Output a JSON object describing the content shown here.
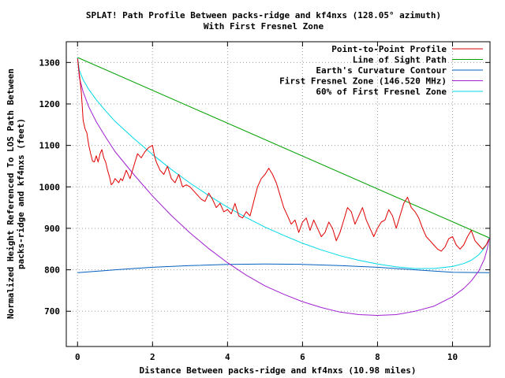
{
  "chart_data": {
    "type": "line",
    "title": "SPLAT! Path Profile Between packs-ridge and kf4nxs (128.05° azimuth)",
    "subtitle": "With First Fresnel Zone",
    "xlabel": "Distance Between packs-ridge and kf4nxs (10.98 miles)",
    "ylabel_lines": [
      "Normalized Height Referenced To LOS Path Between",
      "packs-ridge and kf4nxs (feet)"
    ],
    "xlim": [
      -0.3,
      11.0
    ],
    "ylim": [
      615,
      1350
    ],
    "xticks": [
      0,
      2,
      4,
      6,
      8,
      10
    ],
    "xtick_labels": [
      "0",
      "2",
      "4",
      "6",
      "8",
      "10"
    ],
    "yticks": [
      700,
      800,
      900,
      1000,
      1100,
      1200,
      1300
    ],
    "ytick_labels": [
      "700",
      "800",
      "900",
      "1000",
      "1100",
      "1200",
      "1300"
    ],
    "grid": true,
    "legend_position": "top-right",
    "series": [
      {
        "name": "Point-to-Point Profile",
        "color": "#e00000",
        "x": [
          0,
          0.1,
          0.15,
          0.2,
          0.25,
          0.3,
          0.35,
          0.4,
          0.45,
          0.5,
          0.55,
          0.6,
          0.65,
          0.7,
          0.75,
          0.8,
          0.85,
          0.9,
          0.95,
          1.0,
          1.05,
          1.1,
          1.15,
          1.2,
          1.3,
          1.4,
          1.5,
          1.6,
          1.7,
          1.8,
          1.9,
          2.0,
          2.05,
          2.1,
          2.2,
          2.3,
          2.4,
          2.5,
          2.6,
          2.7,
          2.8,
          2.9,
          3.0,
          3.1,
          3.2,
          3.3,
          3.4,
          3.5,
          3.6,
          3.7,
          3.8,
          3.9,
          4.0,
          4.1,
          4.2,
          4.3,
          4.4,
          4.5,
          4.6,
          4.7,
          4.8,
          4.9,
          5.0,
          5.1,
          5.2,
          5.3,
          5.4,
          5.5,
          5.6,
          5.7,
          5.8,
          5.9,
          6.0,
          6.1,
          6.2,
          6.3,
          6.4,
          6.5,
          6.6,
          6.7,
          6.8,
          6.9,
          7.0,
          7.1,
          7.2,
          7.3,
          7.4,
          7.5,
          7.6,
          7.7,
          7.8,
          7.9,
          8.0,
          8.1,
          8.2,
          8.3,
          8.4,
          8.5,
          8.6,
          8.7,
          8.8,
          8.9,
          9.0,
          9.1,
          9.2,
          9.3,
          9.4,
          9.5,
          9.6,
          9.7,
          9.8,
          9.9,
          10.0,
          10.1,
          10.2,
          10.3,
          10.4,
          10.5,
          10.6,
          10.7,
          10.8,
          10.9,
          10.98
        ],
        "values": [
          1310,
          1230,
          1160,
          1140,
          1130,
          1100,
          1080,
          1062,
          1060,
          1075,
          1060,
          1080,
          1090,
          1070,
          1060,
          1040,
          1025,
          1005,
          1010,
          1020,
          1015,
          1010,
          1020,
          1015,
          1040,
          1020,
          1050,
          1080,
          1070,
          1085,
          1095,
          1100,
          1075,
          1060,
          1040,
          1030,
          1050,
          1020,
          1010,
          1030,
          1000,
          1005,
          1000,
          990,
          980,
          970,
          965,
          985,
          970,
          950,
          960,
          940,
          945,
          935,
          960,
          930,
          925,
          940,
          930,
          965,
          1000,
          1020,
          1030,
          1045,
          1030,
          1010,
          980,
          950,
          930,
          910,
          920,
          890,
          915,
          925,
          895,
          920,
          900,
          880,
          890,
          915,
          900,
          870,
          890,
          920,
          950,
          940,
          910,
          930,
          950,
          920,
          900,
          880,
          900,
          915,
          920,
          945,
          930,
          900,
          930,
          960,
          975,
          950,
          940,
          925,
          900,
          880,
          870,
          860,
          850,
          845,
          855,
          875,
          880,
          860,
          850,
          860,
          880,
          895,
          870,
          860,
          850,
          860,
          875
        ]
      },
      {
        "name": "Line of Sight Path",
        "color": "#00a000",
        "x": [
          0,
          10.98
        ],
        "values": [
          1312,
          877
        ]
      },
      {
        "name": "Earth's Curvature Contour",
        "color": "#0060c0",
        "x": [
          0,
          1,
          2,
          3,
          4,
          5,
          6,
          7,
          8,
          9,
          10,
          10.98
        ],
        "values": [
          793,
          800,
          806,
          810,
          813,
          814,
          813,
          810,
          806,
          800,
          794,
          793
        ]
      },
      {
        "name": "First Fresnel Zone (146.520 MHz)",
        "color": "#a020d0",
        "x": [
          0,
          0.05,
          0.15,
          0.3,
          0.5,
          0.75,
          1.0,
          1.5,
          2.0,
          2.5,
          3.0,
          3.5,
          4.0,
          4.5,
          5.0,
          5.5,
          6.0,
          6.5,
          7.0,
          7.5,
          8.0,
          8.5,
          9.0,
          9.5,
          10.0,
          10.3,
          10.5,
          10.7,
          10.85,
          10.93,
          10.98
        ],
        "values": [
          1312,
          1263,
          1229,
          1193,
          1157,
          1120,
          1085,
          1030,
          978,
          931,
          889,
          851,
          817,
          787,
          761,
          741,
          723,
          709,
          698,
          692,
          690,
          692,
          700,
          712,
          735,
          755,
          773,
          797,
          826,
          852,
          877
        ]
      },
      {
        "name": "60% of First Fresnel Zone",
        "color": "#00d8e8",
        "x": [
          0,
          0.05,
          0.15,
          0.3,
          0.5,
          0.75,
          1.0,
          1.5,
          2.0,
          2.5,
          3.0,
          3.5,
          4.0,
          4.5,
          5.0,
          5.5,
          6.0,
          6.5,
          7.0,
          7.5,
          8.0,
          8.5,
          9.0,
          9.5,
          10.0,
          10.3,
          10.5,
          10.7,
          10.85,
          10.93,
          10.98
        ],
        "values": [
          1312,
          1281,
          1258,
          1235,
          1210,
          1183,
          1158,
          1117,
          1078,
          1042,
          1009,
          979,
          951,
          926,
          903,
          883,
          864,
          848,
          834,
          823,
          814,
          807,
          803,
          803,
          808,
          815,
          823,
          836,
          852,
          866,
          877
        ]
      }
    ]
  }
}
